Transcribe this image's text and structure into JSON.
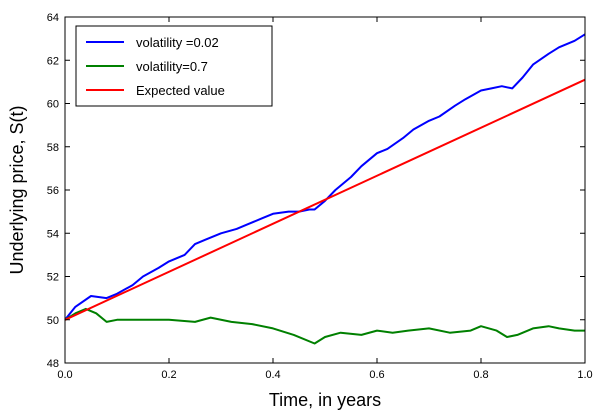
{
  "chart_data": {
    "type": "line",
    "title": "",
    "xlabel": "Time, in years",
    "ylabel": "Underlying price, S(t)",
    "xlim": [
      0.0,
      1.0
    ],
    "ylim": [
      48,
      64
    ],
    "xticks": [
      0.0,
      0.2,
      0.4,
      0.6,
      0.8,
      1.0
    ],
    "xtick_labels": [
      "0.0",
      "0.2",
      "0.4",
      "0.6",
      "0.8",
      "1.0"
    ],
    "yticks": [
      48,
      50,
      52,
      54,
      56,
      58,
      60,
      62,
      64
    ],
    "ytick_labels": [
      "48",
      "50",
      "52",
      "54",
      "56",
      "58",
      "60",
      "62",
      "64"
    ],
    "grid": false,
    "legend_position": "top-left",
    "series": [
      {
        "name": "volatility =0.02",
        "color": "#0000ff",
        "x": [
          0.0,
          0.02,
          0.05,
          0.08,
          0.1,
          0.13,
          0.15,
          0.18,
          0.2,
          0.23,
          0.25,
          0.27,
          0.3,
          0.33,
          0.35,
          0.38,
          0.4,
          0.43,
          0.45,
          0.47,
          0.48,
          0.5,
          0.52,
          0.55,
          0.57,
          0.6,
          0.62,
          0.65,
          0.67,
          0.7,
          0.72,
          0.75,
          0.77,
          0.8,
          0.82,
          0.84,
          0.86,
          0.88,
          0.9,
          0.93,
          0.95,
          0.98,
          1.0
        ],
        "y": [
          50.0,
          50.6,
          51.1,
          51.0,
          51.2,
          51.6,
          52.0,
          52.4,
          52.7,
          53.0,
          53.5,
          53.7,
          54.0,
          54.2,
          54.4,
          54.7,
          54.9,
          55.0,
          55.0,
          55.1,
          55.1,
          55.5,
          56.0,
          56.6,
          57.1,
          57.7,
          57.9,
          58.4,
          58.8,
          59.2,
          59.4,
          59.9,
          60.2,
          60.6,
          60.7,
          60.8,
          60.7,
          61.2,
          61.8,
          62.3,
          62.6,
          62.9,
          63.2
        ]
      },
      {
        "name": "volatility=0.7",
        "color": "#008000",
        "x": [
          0.0,
          0.02,
          0.04,
          0.06,
          0.08,
          0.1,
          0.15,
          0.2,
          0.25,
          0.28,
          0.32,
          0.36,
          0.4,
          0.44,
          0.48,
          0.5,
          0.53,
          0.57,
          0.6,
          0.63,
          0.66,
          0.7,
          0.74,
          0.78,
          0.8,
          0.83,
          0.85,
          0.87,
          0.9,
          0.93,
          0.95,
          0.98,
          1.0
        ],
        "y": [
          50.0,
          50.3,
          50.5,
          50.3,
          49.9,
          50.0,
          50.0,
          50.0,
          49.9,
          50.1,
          49.9,
          49.8,
          49.6,
          49.3,
          48.9,
          49.2,
          49.4,
          49.3,
          49.5,
          49.4,
          49.5,
          49.6,
          49.4,
          49.5,
          49.7,
          49.5,
          49.2,
          49.3,
          49.6,
          49.7,
          49.6,
          49.5,
          49.5
        ]
      },
      {
        "name": "Expected value",
        "color": "#ff0000",
        "x": [
          0.0,
          1.0
        ],
        "y": [
          50.0,
          61.1
        ]
      }
    ]
  }
}
